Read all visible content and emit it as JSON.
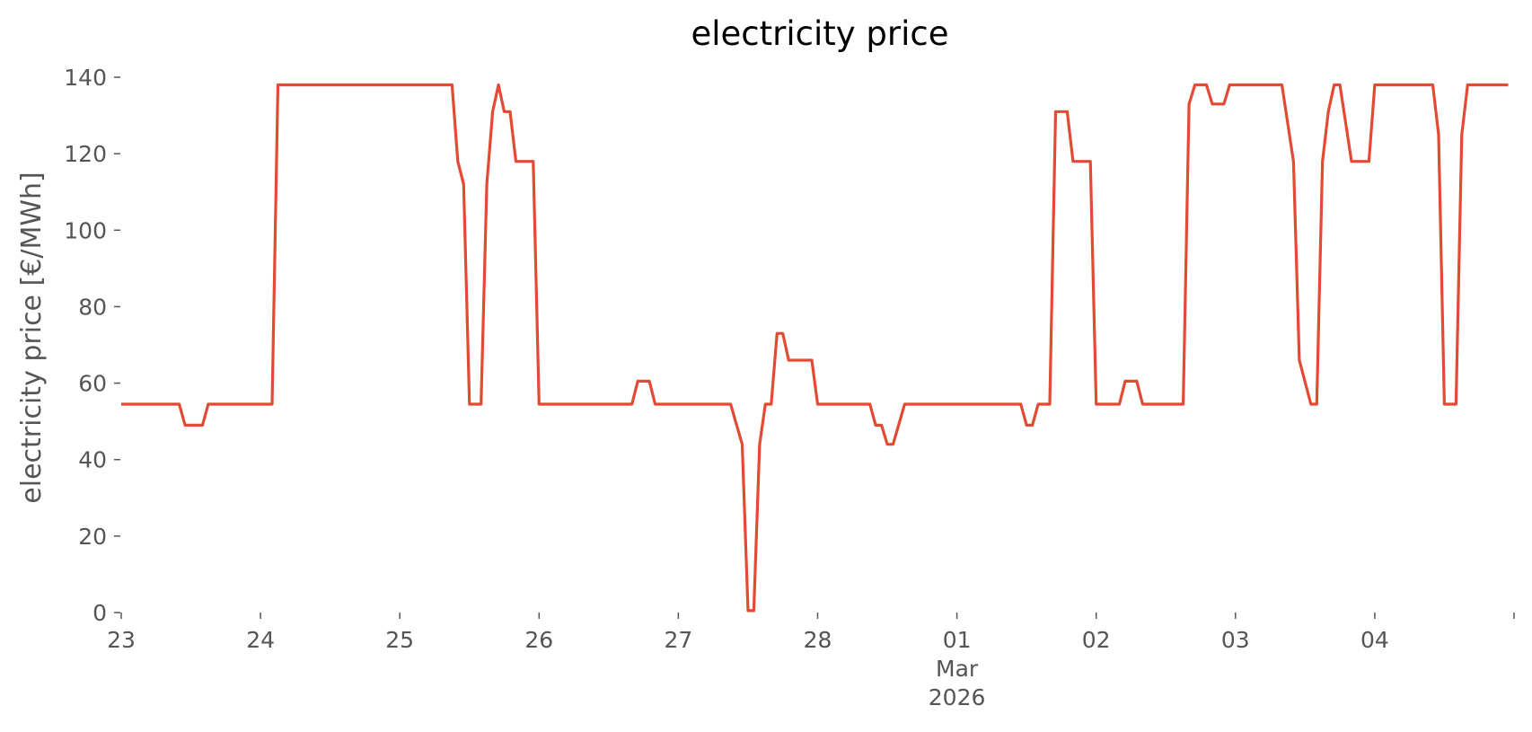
{
  "chart_data": {
    "type": "line",
    "title": "electricity price",
    "xlabel": "",
    "ylabel": "electricity price [€/MWh]",
    "ylim": [
      0,
      140
    ],
    "yticks": [
      0,
      20,
      40,
      60,
      80,
      100,
      120,
      140
    ],
    "xlim": [
      "2026-02-23T00:00",
      "2026-03-04T23:00"
    ],
    "xticks": [
      {
        "date": "2026-02-23T00:00",
        "label": "23"
      },
      {
        "date": "2026-02-24T00:00",
        "label": "24"
      },
      {
        "date": "2026-02-25T00:00",
        "label": "25"
      },
      {
        "date": "2026-02-26T00:00",
        "label": "26"
      },
      {
        "date": "2026-02-27T00:00",
        "label": "27"
      },
      {
        "date": "2026-02-28T00:00",
        "label": "28"
      },
      {
        "date": "2026-03-01T00:00",
        "label": "01",
        "sublabels": [
          "Mar",
          "2026"
        ]
      },
      {
        "date": "2026-03-02T00:00",
        "label": "02"
      },
      {
        "date": "2026-03-03T00:00",
        "label": "03"
      },
      {
        "date": "2026-03-04T00:00",
        "label": "04"
      },
      {
        "date": "2026-03-05T00:00",
        "label": ""
      }
    ],
    "grid": false,
    "series": [
      {
        "color": "#E24A33",
        "x": [
          "2026-02-23T00:00",
          "2026-02-23T10:00",
          "2026-02-23T11:00",
          "2026-02-23T14:00",
          "2026-02-23T15:00",
          "2026-02-24T02:00",
          "2026-02-24T03:00",
          "2026-02-25T09:00",
          "2026-02-25T10:00",
          "2026-02-25T11:00",
          "2026-02-25T12:00",
          "2026-02-25T14:00",
          "2026-02-25T15:00",
          "2026-02-25T16:00",
          "2026-02-25T17:00",
          "2026-02-25T18:00",
          "2026-02-25T19:00",
          "2026-02-25T20:00",
          "2026-02-25T21:00",
          "2026-02-25T22:00",
          "2026-02-25T23:00",
          "2026-02-26T00:00",
          "2026-02-26T16:00",
          "2026-02-26T17:00",
          "2026-02-26T19:00",
          "2026-02-26T20:00",
          "2026-02-27T09:00",
          "2026-02-27T11:00",
          "2026-02-27T12:00",
          "2026-02-27T13:00",
          "2026-02-27T14:00",
          "2026-02-27T15:00",
          "2026-02-27T16:00",
          "2026-02-27T17:00",
          "2026-02-27T18:00",
          "2026-02-27T19:00",
          "2026-02-27T20:00",
          "2026-02-27T23:00",
          "2026-02-28T00:00",
          "2026-02-28T09:00",
          "2026-02-28T10:00",
          "2026-02-28T11:00",
          "2026-02-28T12:00",
          "2026-02-28T13:00",
          "2026-02-28T15:00",
          "2026-03-01T11:00",
          "2026-03-01T12:00",
          "2026-03-01T13:00",
          "2026-03-01T14:00",
          "2026-03-01T16:00",
          "2026-03-01T17:00",
          "2026-03-01T19:00",
          "2026-03-01T20:00",
          "2026-03-01T23:00",
          "2026-03-02T00:00",
          "2026-03-02T04:00",
          "2026-03-02T05:00",
          "2026-03-02T07:00",
          "2026-03-02T08:00",
          "2026-03-02T15:00",
          "2026-03-02T16:00",
          "2026-03-02T17:00",
          "2026-03-02T19:00",
          "2026-03-02T20:00",
          "2026-03-02T22:00",
          "2026-03-02T23:00",
          "2026-03-03T08:00",
          "2026-03-03T10:00",
          "2026-03-03T11:00",
          "2026-03-03T13:00",
          "2026-03-03T14:00",
          "2026-03-03T15:00",
          "2026-03-03T16:00",
          "2026-03-03T17:00",
          "2026-03-03T18:00",
          "2026-03-03T20:00",
          "2026-03-03T21:00",
          "2026-03-03T23:00",
          "2026-03-04T00:00",
          "2026-03-04T10:00",
          "2026-03-04T11:00",
          "2026-03-04T12:00",
          "2026-03-04T14:00",
          "2026-03-04T15:00",
          "2026-03-04T16:00",
          "2026-03-04T23:00"
        ],
        "y": [
          54.5,
          54.5,
          49,
          49,
          54.5,
          54.5,
          138,
          138,
          118,
          112,
          54.5,
          54.5,
          112,
          131,
          138,
          131,
          131,
          118,
          118,
          118,
          118,
          54.5,
          54.5,
          60.5,
          60.5,
          54.5,
          54.5,
          44,
          0.5,
          0.5,
          44,
          54.5,
          54.5,
          73,
          73,
          66,
          66,
          66,
          54.5,
          54.5,
          49,
          49,
          44,
          44,
          54.5,
          54.5,
          49,
          49,
          54.5,
          54.5,
          131,
          131,
          118,
          118,
          54.5,
          54.5,
          60.5,
          60.5,
          54.5,
          54.5,
          133,
          138,
          138,
          133,
          133,
          138,
          138,
          118,
          66,
          54.5,
          54.5,
          118,
          131,
          138,
          138,
          118,
          118,
          118,
          138,
          138,
          125,
          54.5,
          54.5,
          125,
          138,
          138
        ]
      }
    ]
  }
}
